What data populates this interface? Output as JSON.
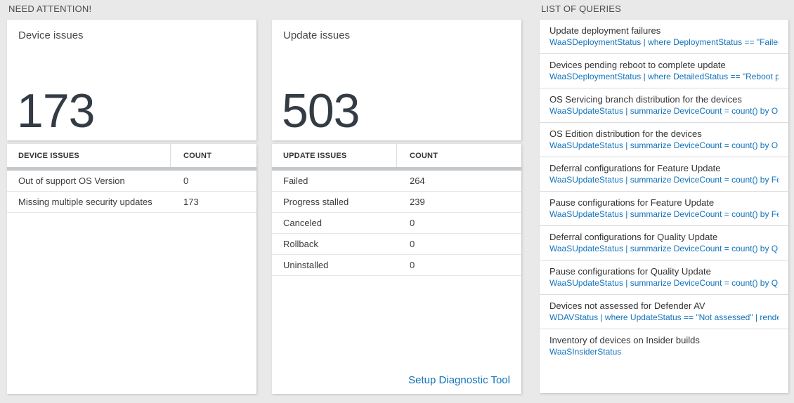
{
  "sections": {
    "need_attention_title": "NEED ATTENTION!",
    "queries_title": "LIST OF QUERIES"
  },
  "device_card": {
    "title": "Device issues",
    "count": "173",
    "table": {
      "headers": [
        "DEVICE ISSUES",
        "COUNT"
      ],
      "rows": [
        [
          "Out of support OS Version",
          "0"
        ],
        [
          "Missing multiple security updates",
          "173"
        ]
      ]
    }
  },
  "update_card": {
    "title": "Update issues",
    "count": "503",
    "table": {
      "headers": [
        "UPDATE ISSUES",
        "COUNT"
      ],
      "rows": [
        [
          "Failed",
          "264"
        ],
        [
          "Progress stalled",
          "239"
        ],
        [
          "Canceled",
          "0"
        ],
        [
          "Rollback",
          "0"
        ],
        [
          "Uninstalled",
          "0"
        ]
      ]
    },
    "link_label": "Setup Diagnostic Tool"
  },
  "queries_list": [
    {
      "title": "Update deployment failures",
      "query": "WaaSDeploymentStatus | where DeploymentStatus == \"Failed\" |..."
    },
    {
      "title": "Devices pending reboot to complete update",
      "query": "WaaSDeploymentStatus | where DetailedStatus == \"Reboot pend..."
    },
    {
      "title": "OS Servicing branch distribution for the devices",
      "query": "WaaSUpdateStatus | summarize DeviceCount = count() by OSSer..."
    },
    {
      "title": "OS Edition distribution for the devices",
      "query": "WaaSUpdateStatus | summarize DeviceCount = count() by OSEdit..."
    },
    {
      "title": "Deferral configurations for Feature Update",
      "query": "WaaSUpdateStatus | summarize DeviceCount = count() by Featur..."
    },
    {
      "title": "Pause configurations for Feature Update",
      "query": "WaaSUpdateStatus | summarize DeviceCount = count() by Featur..."
    },
    {
      "title": "Deferral configurations for Quality Update",
      "query": "WaaSUpdateStatus | summarize DeviceCount = count() by Qualit..."
    },
    {
      "title": "Pause configurations for Quality Update",
      "query": "WaaSUpdateStatus | summarize DeviceCount = count() by Qualit..."
    },
    {
      "title": "Devices not assessed for Defender AV",
      "query": "WDAVStatus | where UpdateStatus == \"Not assessed\" | render ta..."
    },
    {
      "title": "Inventory of devices on Insider builds",
      "query": "WaaSInsiderStatus"
    }
  ],
  "colors": {
    "accent_blue": "#1273bb",
    "big_number": "#333b44",
    "background": "#e9e9e9",
    "header_bar": "#c5c8cb"
  }
}
